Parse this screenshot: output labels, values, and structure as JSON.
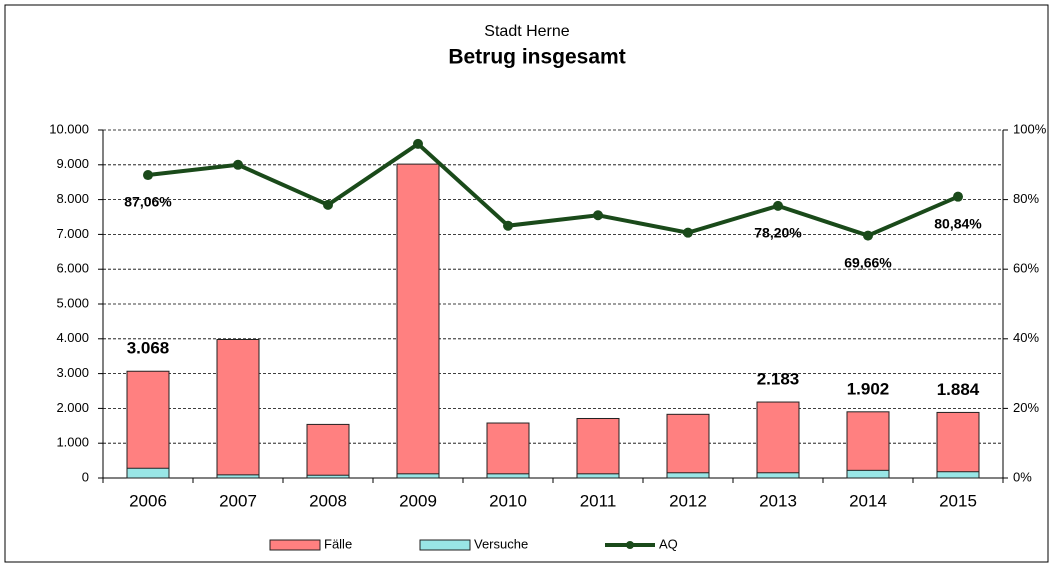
{
  "chart_data": {
    "type": "bar",
    "subtitle": "Stadt Herne",
    "title": "Betrug insgesamt",
    "categories": [
      "2006",
      "2007",
      "2008",
      "2009",
      "2010",
      "2011",
      "2012",
      "2013",
      "2014",
      "2015"
    ],
    "series": [
      {
        "name": "Fälle",
        "color": "#ff8080",
        "values": [
          3068,
          3980,
          1540,
          9020,
          1580,
          1710,
          1830,
          2183,
          1902,
          1884
        ],
        "value_labels": [
          "3.068",
          null,
          null,
          null,
          null,
          null,
          null,
          "2.183",
          "1.902",
          "1.884"
        ]
      },
      {
        "name": "Versuche",
        "color": "#99e6e6",
        "values": [
          280,
          90,
          80,
          120,
          120,
          120,
          150,
          150,
          220,
          180
        ]
      },
      {
        "name": "AQ",
        "color": "#1a4a1a",
        "axis": "y2",
        "values": [
          87.06,
          90,
          78.5,
          96,
          72.5,
          75.5,
          70.5,
          78.2,
          69.66,
          80.84
        ],
        "value_labels": [
          "87,06%",
          null,
          null,
          null,
          null,
          null,
          null,
          "78,20%",
          "69,66%",
          "80,84%"
        ]
      }
    ],
    "ylim": [
      0,
      10000
    ],
    "yticks": [
      0,
      {
        "value": 1000,
        "label": "1.000"
      },
      {
        "value": 2000,
        "label": "2.000"
      },
      {
        "value": 3000,
        "label": "3.000"
      },
      {
        "value": 4000,
        "label": "4.000"
      },
      {
        "value": 5000,
        "label": "5.000"
      },
      {
        "value": 6000,
        "label": "6.000"
      },
      {
        "value": 7000,
        "label": "7.000"
      },
      {
        "value": 8000,
        "label": "8.000"
      },
      {
        "value": 9000,
        "label": "9.000"
      },
      {
        "value": 10000,
        "label": "10.000"
      }
    ],
    "y2lim": [
      0,
      100
    ],
    "y2ticks": [
      {
        "value": 0,
        "label": "0%"
      },
      {
        "value": 20,
        "label": "20%"
      },
      {
        "value": 40,
        "label": "40%"
      },
      {
        "value": 60,
        "label": "60%"
      },
      {
        "value": 80,
        "label": "80%"
      },
      {
        "value": 100,
        "label": "100%"
      }
    ],
    "grid": true,
    "legend": "bottom"
  }
}
